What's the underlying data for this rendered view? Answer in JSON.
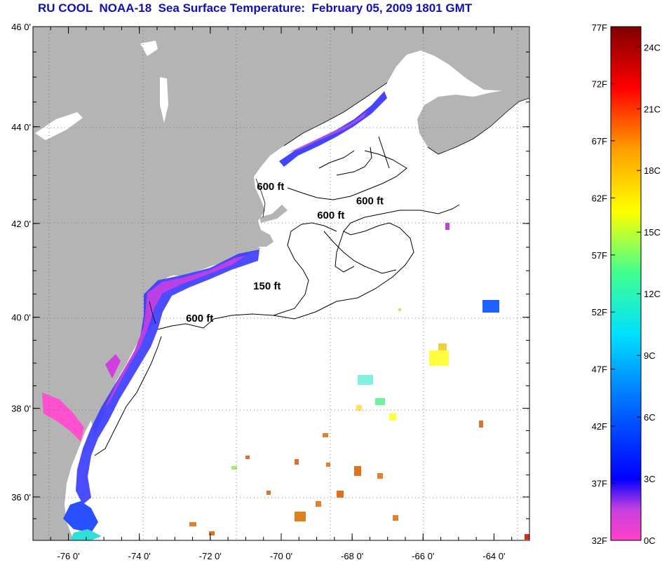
{
  "title": "RU COOL  NOAA-18  Sea Surface Temperature:  February 05, 2009 1801 GMT",
  "colors": {
    "land": "#b4b4b4",
    "ocean": "#ffffff",
    "title": "#1010b4"
  },
  "map": {
    "lon_range": [
      -77,
      -63
    ],
    "lat_range": [
      35,
      46
    ],
    "lon_ticks": [
      {
        "value": -76,
        "label": "-76 0'"
      },
      {
        "value": -74,
        "label": "-74 0'"
      },
      {
        "value": -72,
        "label": "-72 0'"
      },
      {
        "value": -70,
        "label": "-70 0'"
      },
      {
        "value": -68,
        "label": "-68 0'"
      },
      {
        "value": -66,
        "label": "-66 0'"
      },
      {
        "value": -64,
        "label": "-64 0'"
      }
    ],
    "lat_ticks": [
      {
        "value": 46,
        "label": "46 0'"
      },
      {
        "value": 44,
        "label": "44 0'"
      },
      {
        "value": 42,
        "label": "42 0'"
      },
      {
        "value": 40,
        "label": "40 0'"
      },
      {
        "value": 38,
        "label": "38 0'"
      },
      {
        "value": 36,
        "label": "36 0'"
      }
    ],
    "contour_labels": [
      {
        "text": "600 ft",
        "lon": -70.3,
        "lat": 42.7
      },
      {
        "text": "600 ft",
        "lon": -67.5,
        "lat": 42.4
      },
      {
        "text": "600 ft",
        "lon": -68.6,
        "lat": 42.1
      },
      {
        "text": "150 ft",
        "lon": -70.4,
        "lat": 40.6
      },
      {
        "text": "600 ft",
        "lon": -72.3,
        "lat": 39.9
      }
    ]
  },
  "colorbar": {
    "range_f": [
      32,
      77
    ],
    "fahrenheit_labels": [
      "77F",
      "72F",
      "67F",
      "62F",
      "57F",
      "52F",
      "47F",
      "42F",
      "37F",
      "32F"
    ],
    "celsius_labels": [
      "24C",
      "21C",
      "18C",
      "15C",
      "12C",
      "9C",
      "6C",
      "3C",
      "0C"
    ],
    "celsius_values_f": [
      75.2,
      69.8,
      64.4,
      59.0,
      53.6,
      48.2,
      42.8,
      37.4,
      32.0
    ]
  }
}
